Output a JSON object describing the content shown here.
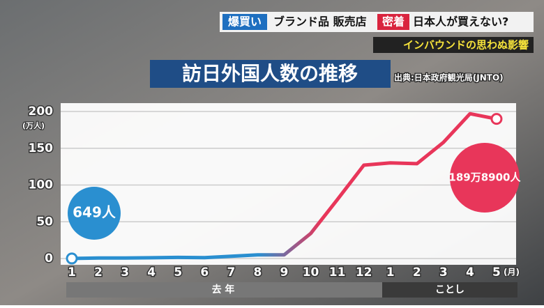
{
  "header": {
    "tag1": "爆買い",
    "topic": "ブランド品 販売店",
    "tag2": "密着",
    "question": "日本人が買えない?",
    "subtitle": "インバウンドの思わぬ影響"
  },
  "chart_data": {
    "type": "line",
    "title": "訪日外国人数の推移",
    "source": "出典:日本政府観光局(JNTO)",
    "y_unit": "(万人)",
    "x_unit": "(月)",
    "period_labels": [
      "去 年",
      "ことし"
    ],
    "categories": [
      "1",
      "2",
      "3",
      "4",
      "5",
      "6",
      "7",
      "8",
      "9",
      "10",
      "11",
      "12",
      "1",
      "2",
      "3",
      "4",
      "5"
    ],
    "values": [
      0.0649,
      0.7,
      0.7,
      1,
      1.5,
      1.2,
      3,
      5,
      5,
      34,
      80,
      127,
      130,
      129,
      158,
      197,
      189.89
    ],
    "value_labels": [
      "649人",
      null,
      null,
      null,
      null,
      null,
      null,
      null,
      null,
      null,
      null,
      null,
      null,
      null,
      null,
      null,
      "189万8900人"
    ],
    "ylim": [
      0,
      200
    ],
    "yticks": [
      0,
      50,
      100,
      150,
      200
    ],
    "grid": true,
    "colors": [
      "#2a8fd0",
      "#e8365a"
    ]
  }
}
